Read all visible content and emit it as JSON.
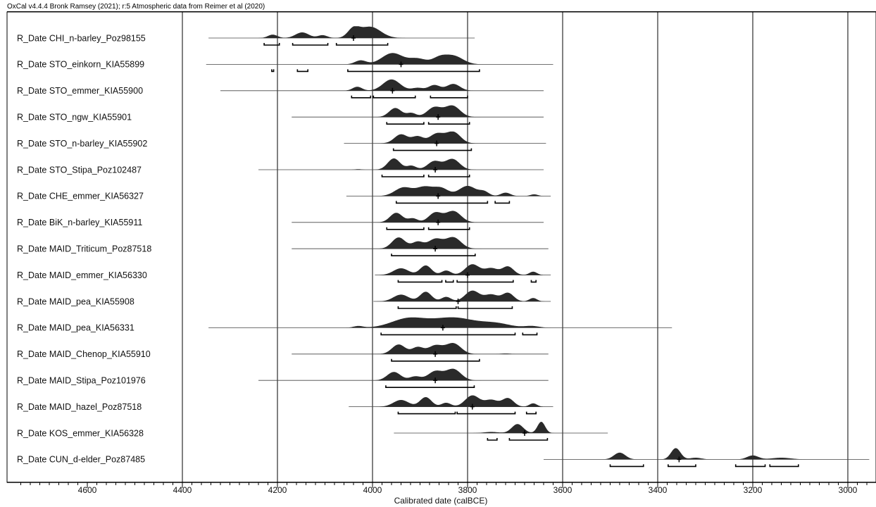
{
  "header": "OxCal v4.4.4 Bronk Ramsey (2021); r:5 Atmospheric data from Reimer et al (2020)",
  "chart_data": {
    "type": "calibrated-date-plot",
    "xlabel": "Calibrated date (calBCE)",
    "xlim": [
      4750,
      2950
    ],
    "x_reversed": true,
    "major_ticks": [
      4600,
      4400,
      4200,
      4000,
      3800,
      3600,
      3400,
      3200,
      3000
    ],
    "minor_tick_step": 20,
    "gridlines": [
      4400,
      4200,
      4000,
      3800,
      3600,
      3400,
      3200,
      3000
    ],
    "rows": [
      {
        "label": "R_Date CHI_n-barley_Poz98155",
        "range": [
          4345,
          3785
        ],
        "median": 4040,
        "peaks": [
          [
            4210,
            0.3,
            10
          ],
          [
            4148,
            0.5,
            14
          ],
          [
            4105,
            0.25,
            10
          ],
          [
            4040,
            0.75,
            12
          ],
          [
            4005,
            1.0,
            22
          ]
        ],
        "brackets": [
          [
            4228,
            4196
          ],
          [
            4168,
            4094
          ],
          [
            4076,
            3968
          ]
        ]
      },
      {
        "label": "R_Date STO_einkorn_KIA55899",
        "range": [
          4350,
          3620
        ],
        "median": 3940,
        "peaks": [
          [
            4025,
            0.35,
            12
          ],
          [
            3958,
            1.0,
            22
          ],
          [
            3905,
            0.5,
            18
          ],
          [
            3860,
            0.5,
            15
          ],
          [
            3830,
            0.75,
            20
          ]
        ],
        "brackets": [
          [
            4212,
            4208
          ],
          [
            4158,
            4136
          ],
          [
            4052,
            3775
          ]
        ]
      },
      {
        "label": "R_Date STO_emmer_KIA55900",
        "range": [
          4320,
          3640
        ],
        "median": 3958,
        "peaks": [
          [
            4032,
            0.35,
            10
          ],
          [
            3960,
            1.0,
            18
          ],
          [
            3905,
            0.25,
            12
          ],
          [
            3870,
            0.5,
            12
          ],
          [
            3830,
            0.6,
            14
          ]
        ],
        "brackets": [
          [
            4044,
            4004
          ],
          [
            3998,
            3910
          ],
          [
            3878,
            3800
          ]
        ]
      },
      {
        "label": "R_Date STO_ngw_KIA55901",
        "range": [
          4170,
          3640
        ],
        "median": 3862,
        "peaks": [
          [
            3952,
            0.8,
            13
          ],
          [
            3918,
            0.35,
            10
          ],
          [
            3870,
            0.85,
            15
          ],
          [
            3832,
            1.0,
            16
          ]
        ],
        "brackets": [
          [
            3970,
            3892
          ],
          [
            3882,
            3796
          ]
        ]
      },
      {
        "label": "R_Date STO_n-barley_KIA55902",
        "range": [
          4060,
          3635
        ],
        "median": 3865,
        "peaks": [
          [
            3940,
            0.8,
            14
          ],
          [
            3905,
            0.6,
            12
          ],
          [
            3865,
            0.85,
            15
          ],
          [
            3830,
            1.0,
            15
          ]
        ],
        "brackets": [
          [
            3956,
            3792
          ]
        ]
      },
      {
        "label": "R_Date STO_Stipa_Poz102487",
        "range": [
          4240,
          3640
        ],
        "median": 3868,
        "peaks": [
          [
            4030,
            0.05,
            6
          ],
          [
            3955,
            1.0,
            13
          ],
          [
            3918,
            0.35,
            10
          ],
          [
            3870,
            0.75,
            14
          ],
          [
            3832,
            0.95,
            15
          ]
        ],
        "brackets": [
          [
            3980,
            3892
          ],
          [
            3882,
            3796
          ]
        ]
      },
      {
        "label": "R_Date CHE_emmer_KIA56327",
        "range": [
          4055,
          3625
        ],
        "median": 3862,
        "peaks": [
          [
            3935,
            0.75,
            18
          ],
          [
            3890,
            0.8,
            18
          ],
          [
            3855,
            0.65,
            15
          ],
          [
            3800,
            0.9,
            18
          ],
          [
            3765,
            0.35,
            10
          ],
          [
            3720,
            0.3,
            10
          ],
          [
            3660,
            0.15,
            8
          ]
        ],
        "brackets": [
          [
            3950,
            3758
          ],
          [
            3742,
            3712
          ]
        ]
      },
      {
        "label": "R_Date BiK_n-barley_KIA55911",
        "range": [
          4170,
          3640
        ],
        "median": 3862,
        "peaks": [
          [
            3950,
            0.85,
            13
          ],
          [
            3915,
            0.35,
            10
          ],
          [
            3868,
            0.85,
            14
          ],
          [
            3830,
            1.0,
            16
          ]
        ],
        "brackets": [
          [
            3970,
            3892
          ],
          [
            3882,
            3796
          ]
        ]
      },
      {
        "label": "R_Date MAID_Triticum_Poz87518",
        "range": [
          4170,
          3630
        ],
        "median": 3868,
        "peaks": [
          [
            3945,
            1.0,
            14
          ],
          [
            3905,
            0.6,
            12
          ],
          [
            3868,
            0.85,
            15
          ],
          [
            3830,
            1.0,
            16
          ]
        ],
        "brackets": [
          [
            3960,
            3784
          ]
        ]
      },
      {
        "label": "R_Date MAID_emmer_KIA56330",
        "range": [
          3995,
          3625
        ],
        "median": 3800,
        "peaks": [
          [
            3940,
            0.6,
            16
          ],
          [
            3888,
            0.85,
            12
          ],
          [
            3845,
            0.4,
            10
          ],
          [
            3790,
            0.95,
            15
          ],
          [
            3750,
            0.6,
            14
          ],
          [
            3715,
            0.75,
            12
          ],
          [
            3662,
            0.3,
            8
          ]
        ],
        "brackets": [
          [
            3946,
            3854
          ],
          [
            3846,
            3830
          ],
          [
            3822,
            3704
          ],
          [
            3666,
            3656
          ]
        ]
      },
      {
        "label": "R_Date MAID_pea_KIA55908",
        "range": [
          3998,
          3625
        ],
        "median": 3820,
        "peaks": [
          [
            3940,
            0.6,
            16
          ],
          [
            3888,
            0.85,
            12
          ],
          [
            3845,
            0.4,
            10
          ],
          [
            3790,
            0.95,
            15
          ],
          [
            3750,
            0.6,
            14
          ],
          [
            3715,
            0.75,
            12
          ],
          [
            3662,
            0.3,
            8
          ]
        ],
        "brackets": [
          [
            3946,
            3824
          ],
          [
            3820,
            3706
          ]
        ]
      },
      {
        "label": "R_Date MAID_pea_KIA56331",
        "range": [
          4345,
          3370
        ],
        "median": 3852,
        "peaks": [
          [
            4030,
            0.15,
            10
          ],
          [
            3925,
            0.8,
            35
          ],
          [
            3830,
            0.9,
            45
          ],
          [
            3740,
            0.35,
            30
          ],
          [
            3665,
            0.15,
            15
          ]
        ],
        "brackets": [
          [
            3982,
            3700
          ],
          [
            3684,
            3654
          ]
        ]
      },
      {
        "label": "R_Date MAID_Chenop_KIA55910",
        "range": [
          4170,
          3630
        ],
        "median": 3868,
        "peaks": [
          [
            3945,
            0.85,
            14
          ],
          [
            3905,
            0.6,
            12
          ],
          [
            3868,
            0.75,
            15
          ],
          [
            3830,
            0.95,
            16
          ],
          [
            3720,
            0.05,
            10
          ]
        ],
        "brackets": [
          [
            3960,
            3775
          ]
        ]
      },
      {
        "label": "R_Date MAID_Stipa_Poz101976",
        "range": [
          4240,
          3630
        ],
        "median": 3868,
        "peaks": [
          [
            3955,
            0.75,
            14
          ],
          [
            3910,
            0.35,
            12
          ],
          [
            3868,
            0.8,
            15
          ],
          [
            3830,
            1.0,
            16
          ]
        ],
        "brackets": [
          [
            3972,
            3786
          ]
        ]
      },
      {
        "label": "R_Date MAID_hazel_Poz87518",
        "range": [
          4050,
          3620
        ],
        "median": 3790,
        "peaks": [
          [
            3940,
            0.6,
            16
          ],
          [
            3888,
            0.85,
            12
          ],
          [
            3845,
            0.35,
            10
          ],
          [
            3790,
            1.0,
            15
          ],
          [
            3750,
            0.6,
            14
          ],
          [
            3715,
            0.75,
            12
          ],
          [
            3662,
            0.3,
            8
          ]
        ],
        "brackets": [
          [
            3946,
            3826
          ],
          [
            3822,
            3700
          ],
          [
            3676,
            3656
          ]
        ]
      },
      {
        "label": "R_Date KOS_emmer_KIA56328",
        "range": [
          3955,
          3505
        ],
        "median": 3680,
        "peaks": [
          [
            3750,
            0.1,
            15
          ],
          [
            3695,
            0.8,
            12
          ],
          [
            3645,
            1.0,
            8
          ]
        ],
        "brackets": [
          [
            3758,
            3738
          ],
          [
            3712,
            3632
          ]
        ]
      },
      {
        "label": "R_Date CUN_d-elder_Poz87485",
        "range": [
          3640,
          2955
        ],
        "median": 3355,
        "peaks": [
          [
            3480,
            0.6,
            12
          ],
          [
            3362,
            1.0,
            10
          ],
          [
            3320,
            0.15,
            12
          ],
          [
            3200,
            0.35,
            12
          ],
          [
            3140,
            0.15,
            20
          ]
        ],
        "brackets": [
          [
            3500,
            3430
          ],
          [
            3378,
            3320
          ],
          [
            3236,
            3174
          ],
          [
            3164,
            3104
          ]
        ]
      }
    ]
  }
}
